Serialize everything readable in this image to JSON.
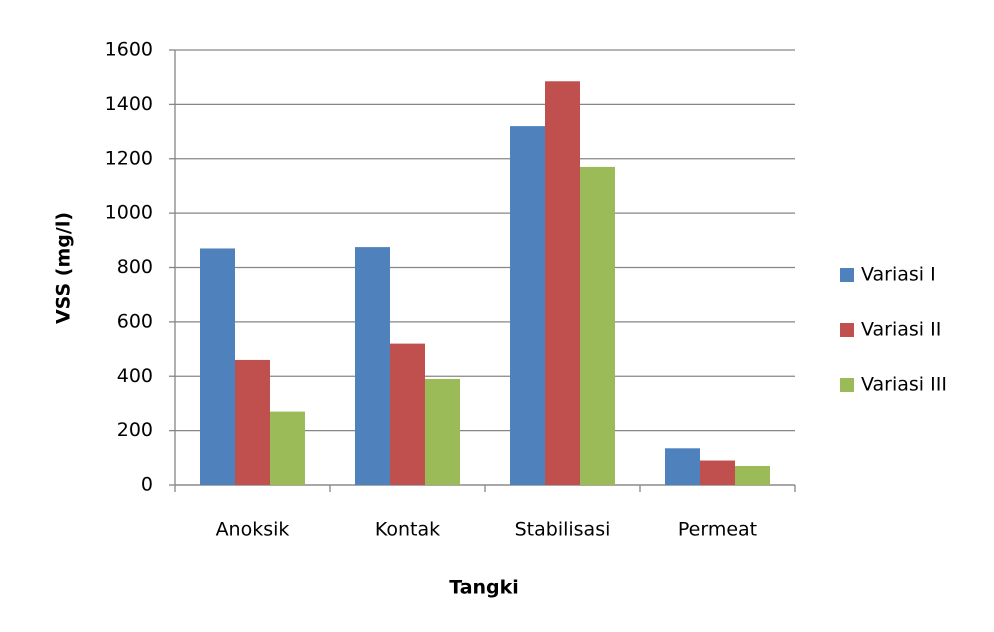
{
  "chart_data": {
    "type": "bar",
    "x_label": "Tangki",
    "y_label": "VSS (mg/l)",
    "categories": [
      "Anoksik",
      "Kontak",
      "Stabilisasi",
      "Permeat"
    ],
    "series": [
      {
        "name": "Variasi I",
        "color": "#4f81bd",
        "values": [
          870,
          875,
          1320,
          135
        ]
      },
      {
        "name": "Variasi II",
        "color": "#c0504d",
        "values": [
          460,
          520,
          1485,
          90
        ]
      },
      {
        "name": "Variasi III",
        "color": "#9bbb59",
        "values": [
          270,
          390,
          1170,
          70
        ]
      }
    ],
    "ylim": [
      0,
      1600
    ],
    "yticks": [
      0,
      200,
      400,
      600,
      800,
      1000,
      1200,
      1400,
      1600
    ],
    "grid": true,
    "legend": "right"
  }
}
